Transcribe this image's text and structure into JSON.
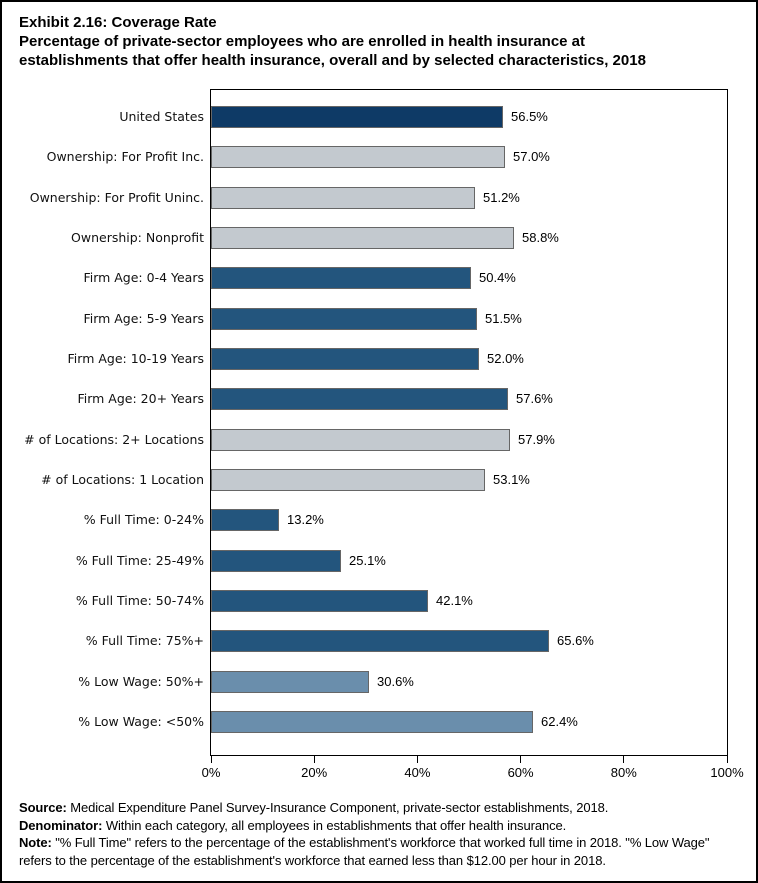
{
  "figure": {
    "exhibit_title": "Exhibit 2.16: Coverage Rate",
    "subtitle": "Percentage of private-sector employees who are enrolled in health insurance at establishments that offer health insurance, overall and by selected characteristics, 2018"
  },
  "chart_data": {
    "type": "bar",
    "orientation": "horizontal",
    "title": "Exhibit 2.16: Coverage Rate",
    "xlabel": "",
    "ylabel": "",
    "xlim": [
      0,
      100
    ],
    "grid": false,
    "legend": "none",
    "categories": [
      "United States",
      "Ownership: For Profit Inc.",
      "Ownership: For Profit Uninc.",
      "Ownership: Nonprofit",
      "Firm Age: 0-4 Years",
      "Firm Age: 5-9 Years",
      "Firm Age: 10-19 Years",
      "Firm Age: 20+ Years",
      "# of Locations: 2+ Locations",
      "# of Locations: 1 Location",
      "% Full Time: 0-24%",
      "% Full Time: 25-49%",
      "% Full Time: 50-74%",
      "% Full Time: 75%+",
      "% Low Wage: 50%+",
      "% Low Wage: <50%"
    ],
    "values": [
      56.5,
      57.0,
      51.2,
      58.8,
      50.4,
      51.5,
      52.0,
      57.6,
      57.9,
      53.1,
      13.2,
      25.1,
      42.1,
      65.6,
      30.6,
      62.4
    ],
    "value_labels": [
      "56.5%",
      "57.0%",
      "51.2%",
      "58.8%",
      "50.4%",
      "51.5%",
      "52.0%",
      "57.6%",
      "57.9%",
      "53.1%",
      "13.2%",
      "25.1%",
      "42.1%",
      "65.6%",
      "30.6%",
      "62.4%"
    ],
    "groups": [
      "navy",
      "gray",
      "gray",
      "gray",
      "blue",
      "blue",
      "blue",
      "blue",
      "gray",
      "gray",
      "blue",
      "blue",
      "blue",
      "blue",
      "steel",
      "steel"
    ],
    "colors": {
      "navy": "#0E3A66",
      "blue": "#23557D",
      "steel": "#6A8EAC",
      "gray": "#C3C9CF"
    },
    "bar_border_color": "#666666",
    "x_ticks": [
      0,
      20,
      40,
      60,
      80,
      100
    ],
    "tick_labels": [
      "0%",
      "20%",
      "40%",
      "60%",
      "80%",
      "100%"
    ]
  },
  "footer": {
    "lines": [
      {
        "label": "Source:",
        "text": "Medical Expenditure Panel Survey-Insurance Component, private-sector establishments, 2018."
      },
      {
        "label": "Denominator:",
        "text": "Within each category, all employees in establishments that offer health insurance."
      },
      {
        "label": "Note:",
        "text": "\"% Full Time\" refers to the percentage of the establishment's workforce that worked full time in 2018. \"% Low Wage\" refers to the percentage of the establishment's workforce that earned less than $12.00 per hour in 2018."
      }
    ]
  }
}
